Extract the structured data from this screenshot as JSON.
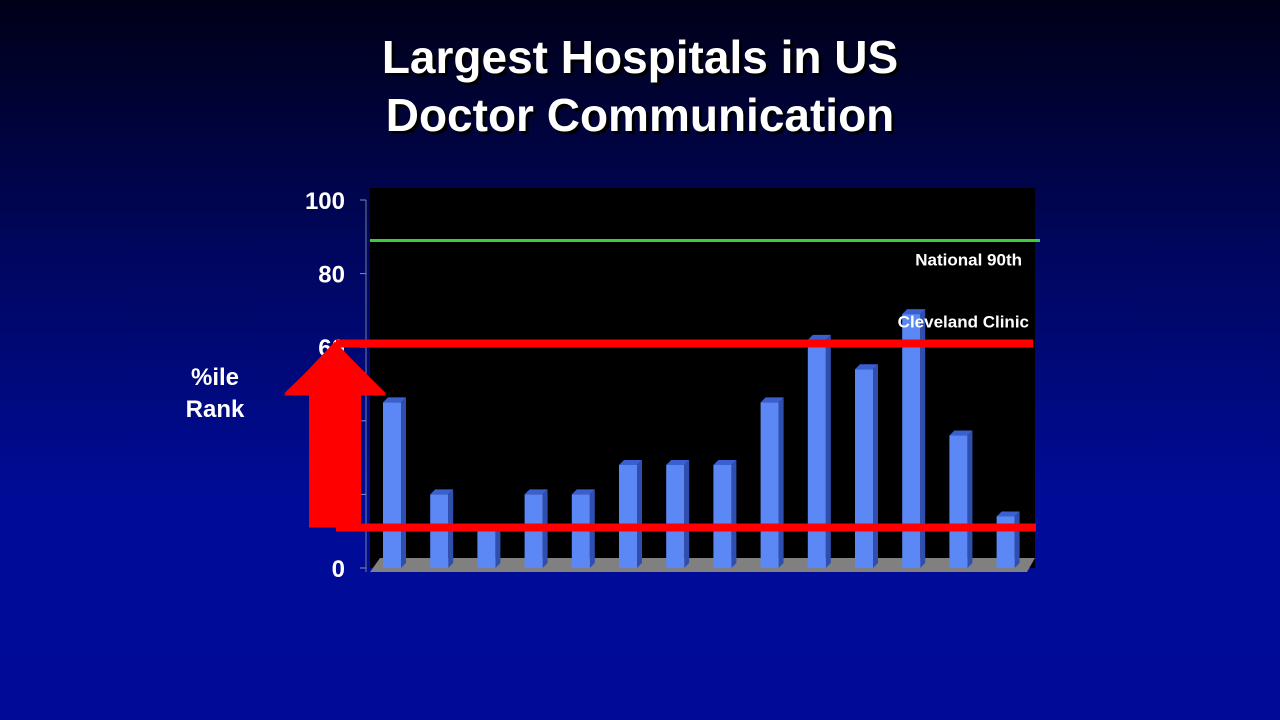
{
  "slide": {
    "title_line1": "Largest Hospitals in US",
    "title_line2": "Doctor Communication",
    "ylabel_line1": "%ile",
    "ylabel_line2": "Rank"
  },
  "colors": {
    "bar": "#5b88f5",
    "bar_side": "#2f4fb0",
    "bar_top": "#3a5fd0",
    "plot_bg": "#000000",
    "national_line": "#3dcc3d",
    "cleveland_line": "#ff0000",
    "arrow": "#ff0000",
    "floor": "#808080"
  },
  "chart_data": {
    "type": "bar",
    "ylim": [
      0,
      100
    ],
    "yticks": [
      {
        "value": 100,
        "label": "100"
      },
      {
        "value": 80,
        "label": "80"
      },
      {
        "value": 60,
        "label": "60"
      },
      {
        "value": 0,
        "label": "0"
      }
    ],
    "values": [
      45,
      20,
      10,
      20,
      20,
      28,
      28,
      28,
      45,
      62,
      54,
      69,
      36,
      14
    ],
    "reference_lines": [
      {
        "name": "National 90th",
        "value": 89
      },
      {
        "name": "Cleveland Clinic",
        "value": 61
      }
    ],
    "lower_line_value": 11,
    "arrow": {
      "from": 11,
      "to": 61
    }
  }
}
